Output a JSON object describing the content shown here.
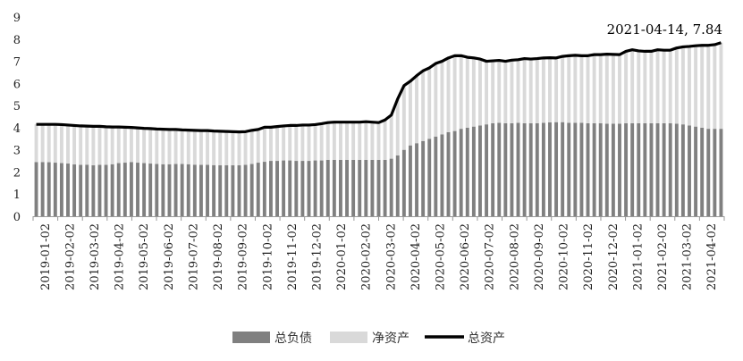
{
  "chart_data": {
    "type": "bar",
    "title": "",
    "xlabel": "",
    "ylabel": "",
    "ylim": [
      0,
      9
    ],
    "yticks": [
      "0",
      "1",
      "2",
      "3",
      "4",
      "5",
      "6",
      "7",
      "8",
      "9"
    ],
    "x_tick_labels": [
      "2019-01-02",
      "2019-02-02",
      "2019-03-02",
      "2019-04-02",
      "2019-05-02",
      "2019-06-02",
      "2019-07-02",
      "2019-08-02",
      "2019-09-02",
      "2019-10-02",
      "2019-11-02",
      "2019-12-02",
      "2020-01-02",
      "2020-02-02",
      "2020-03-02",
      "2020-04-02",
      "2020-05-02",
      "2020-06-02",
      "2020-07-02",
      "2020-08-02",
      "2020-09-02",
      "2020-10-02",
      "2020-11-02",
      "2020-12-02",
      "2021-01-02",
      "2021-02-02",
      "2021-03-02",
      "2021-04-02"
    ],
    "grid": false,
    "legend_position": "bottom",
    "annotation": "2021-04-14, 7.84",
    "series": [
      {
        "name": "总负债",
        "type": "bar",
        "color": "#808080",
        "values": [
          2.45,
          2.45,
          2.44,
          2.42,
          2.4,
          2.38,
          2.34,
          2.32,
          2.33,
          2.3,
          2.32,
          2.32,
          2.35,
          2.4,
          2.42,
          2.45,
          2.42,
          2.4,
          2.38,
          2.36,
          2.35,
          2.35,
          2.36,
          2.36,
          2.35,
          2.33,
          2.32,
          2.32,
          2.31,
          2.3,
          2.3,
          2.3,
          2.3,
          2.32,
          2.36,
          2.42,
          2.46,
          2.5,
          2.5,
          2.52,
          2.52,
          2.5,
          2.5,
          2.5,
          2.52,
          2.52,
          2.55,
          2.55,
          2.55,
          2.55,
          2.55,
          2.55,
          2.55,
          2.55,
          2.55,
          2.55,
          2.6,
          2.75,
          3.0,
          3.2,
          3.3,
          3.4,
          3.5,
          3.6,
          3.7,
          3.8,
          3.85,
          3.95,
          4.0,
          4.05,
          4.1,
          4.15,
          4.2,
          4.22,
          4.2,
          4.2,
          4.22,
          4.2,
          4.2,
          4.2,
          4.22,
          4.24,
          4.25,
          4.25,
          4.22,
          4.22,
          4.22,
          4.2,
          4.2,
          4.2,
          4.18,
          4.18,
          4.18,
          4.2,
          4.2,
          4.2,
          4.2,
          4.2,
          4.2,
          4.2,
          4.2,
          4.18,
          4.15,
          4.1,
          4.05,
          4.0,
          3.95,
          3.95,
          3.95
        ]
      },
      {
        "name": "净资产",
        "type": "bar",
        "color": "#d9d9d9",
        "values": [
          1.7,
          1.7,
          1.71,
          1.73,
          1.74,
          1.74,
          1.76,
          1.76,
          1.74,
          1.76,
          1.74,
          1.72,
          1.68,
          1.63,
          1.6,
          1.56,
          1.57,
          1.57,
          1.58,
          1.58,
          1.58,
          1.57,
          1.56,
          1.54,
          1.54,
          1.55,
          1.55,
          1.55,
          1.54,
          1.54,
          1.53,
          1.52,
          1.51,
          1.5,
          1.52,
          1.5,
          1.56,
          1.52,
          1.55,
          1.56,
          1.58,
          1.6,
          1.62,
          1.62,
          1.62,
          1.66,
          1.68,
          1.7,
          1.7,
          1.7,
          1.7,
          1.7,
          1.72,
          1.7,
          1.68,
          1.8,
          1.97,
          2.55,
          2.9,
          2.9,
          3.05,
          3.17,
          3.2,
          3.3,
          3.3,
          3.35,
          3.4,
          3.3,
          3.18,
          3.1,
          3.0,
          2.85,
          2.82,
          2.82,
          2.8,
          2.85,
          2.85,
          2.92,
          2.9,
          2.92,
          2.93,
          2.92,
          2.9,
          2.97,
          3.03,
          3.05,
          3.03,
          3.05,
          3.1,
          3.1,
          3.14,
          3.13,
          3.12,
          3.25,
          3.32,
          3.27,
          3.25,
          3.25,
          3.32,
          3.3,
          3.3,
          3.42,
          3.5,
          3.57,
          3.65,
          3.72,
          3.77,
          3.8,
          3.89
        ]
      },
      {
        "name": "总资产",
        "type": "line",
        "color": "#000000",
        "values": [
          4.15,
          4.15,
          4.15,
          4.15,
          4.14,
          4.12,
          4.1,
          4.08,
          4.07,
          4.06,
          4.06,
          4.04,
          4.03,
          4.03,
          4.02,
          4.01,
          3.99,
          3.97,
          3.96,
          3.94,
          3.93,
          3.92,
          3.92,
          3.9,
          3.89,
          3.88,
          3.87,
          3.87,
          3.85,
          3.84,
          3.83,
          3.82,
          3.81,
          3.82,
          3.88,
          3.92,
          4.02,
          4.02,
          4.05,
          4.08,
          4.1,
          4.1,
          4.12,
          4.12,
          4.14,
          4.18,
          4.23,
          4.25,
          4.25,
          4.25,
          4.25,
          4.25,
          4.27,
          4.25,
          4.23,
          4.35,
          4.57,
          5.3,
          5.9,
          6.1,
          6.35,
          6.57,
          6.7,
          6.9,
          7.0,
          7.15,
          7.25,
          7.25,
          7.18,
          7.15,
          7.1,
          7.0,
          7.02,
          7.04,
          7.0,
          7.05,
          7.07,
          7.12,
          7.1,
          7.12,
          7.15,
          7.16,
          7.15,
          7.22,
          7.25,
          7.27,
          7.25,
          7.25,
          7.3,
          7.3,
          7.32,
          7.31,
          7.3,
          7.45,
          7.52,
          7.47,
          7.45,
          7.45,
          7.52,
          7.5,
          7.5,
          7.6,
          7.65,
          7.67,
          7.7,
          7.72,
          7.72,
          7.75,
          7.84
        ]
      }
    ]
  }
}
